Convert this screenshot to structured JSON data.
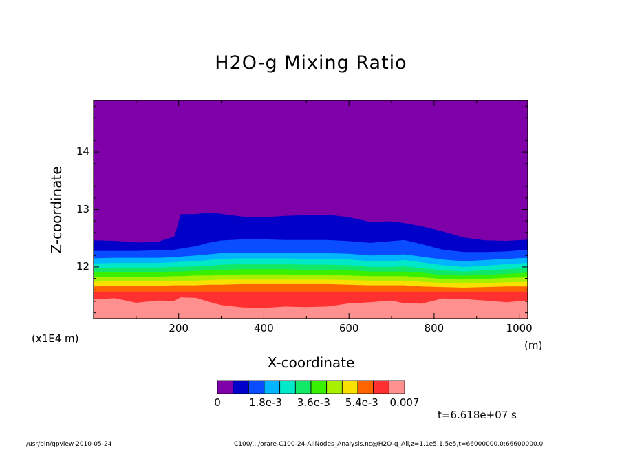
{
  "chart_data": {
    "type": "heatmap",
    "title": "H2O-g Mixing Ratio",
    "xlabel": "X-coordinate",
    "ylabel": "Z-coordinate",
    "x_unit": "(m)",
    "y_unit": "(x1E4 m)",
    "xlim": [
      0,
      1020
    ],
    "ylim": [
      11.1,
      14.9
    ],
    "x_ticks": [
      200,
      400,
      600,
      800,
      1000
    ],
    "x_tick_labels": [
      "200",
      "400",
      "600",
      "800",
      "1000"
    ],
    "y_ticks": [
      12,
      13,
      14
    ],
    "y_tick_labels": [
      "12",
      "13",
      "14"
    ],
    "colorbar": {
      "levels": [
        0,
        0.0007,
        0.0012,
        0.0018,
        0.0024,
        0.003,
        0.0036,
        0.0042,
        0.0048,
        0.0054,
        0.006,
        0.0066,
        0.007
      ],
      "colors": [
        "#7f00a8",
        "#0000c8",
        "#0a4cff",
        "#00b4ff",
        "#00e8c8",
        "#12e868",
        "#38f000",
        "#a8f000",
        "#f8e000",
        "#ff6400",
        "#ff3030",
        "#ff9090"
      ],
      "tick_labels": [
        "0",
        "1.8e-3",
        "3.6e-3",
        "5.4e-3",
        "0.007"
      ]
    },
    "profile_x": [
      0,
      50,
      100,
      150,
      190,
      205,
      240,
      270,
      300,
      350,
      400,
      450,
      500,
      550,
      600,
      650,
      700,
      730,
      770,
      820,
      870,
      920,
      970,
      1020
    ],
    "boundaries": [
      {
        "upper_level": 0.0007,
        "z": [
          12.45,
          12.45,
          12.43,
          12.45,
          12.52,
          12.92,
          12.93,
          12.93,
          12.92,
          12.88,
          12.88,
          12.88,
          12.9,
          12.92,
          12.85,
          12.78,
          12.8,
          12.78,
          12.7,
          12.62,
          12.52,
          12.45,
          12.45,
          12.48
        ]
      },
      {
        "upper_level": 0.0012,
        "z": [
          12.28,
          12.28,
          12.28,
          12.29,
          12.3,
          12.32,
          12.36,
          12.42,
          12.46,
          12.48,
          12.48,
          12.47,
          12.47,
          12.47,
          12.45,
          12.42,
          12.45,
          12.47,
          12.4,
          12.3,
          12.26,
          12.26,
          12.27,
          12.3
        ]
      },
      {
        "upper_level": 0.0018,
        "z": [
          12.15,
          12.16,
          12.16,
          12.16,
          12.17,
          12.18,
          12.2,
          12.22,
          12.24,
          12.25,
          12.25,
          12.25,
          12.24,
          12.24,
          12.23,
          12.2,
          12.21,
          12.22,
          12.18,
          12.13,
          12.1,
          12.12,
          12.14,
          12.16
        ]
      },
      {
        "upper_level": 0.0024,
        "z": [
          12.06,
          12.07,
          12.07,
          12.07,
          12.08,
          12.09,
          12.1,
          12.12,
          12.14,
          12.15,
          12.15,
          12.15,
          12.14,
          12.14,
          12.13,
          12.1,
          12.1,
          12.12,
          12.08,
          12.03,
          12.0,
          12.02,
          12.05,
          12.07
        ]
      },
      {
        "upper_level": 0.003,
        "z": [
          11.98,
          11.99,
          11.99,
          11.99,
          12.0,
          12.0,
          12.01,
          12.02,
          12.04,
          12.05,
          12.05,
          12.05,
          12.04,
          12.04,
          12.03,
          12.0,
          12.0,
          12.01,
          11.98,
          11.94,
          11.92,
          11.94,
          11.96,
          11.98
        ]
      },
      {
        "upper_level": 0.0036,
        "z": [
          11.9,
          11.91,
          11.91,
          11.91,
          11.92,
          11.92,
          11.93,
          11.94,
          11.95,
          11.96,
          11.96,
          11.96,
          11.95,
          11.95,
          11.94,
          11.92,
          11.92,
          11.92,
          11.9,
          11.86,
          11.85,
          11.86,
          11.88,
          11.9
        ]
      },
      {
        "upper_level": 0.0042,
        "z": [
          11.82,
          11.83,
          11.83,
          11.83,
          11.84,
          11.84,
          11.85,
          11.85,
          11.86,
          11.87,
          11.87,
          11.87,
          11.86,
          11.86,
          11.85,
          11.84,
          11.84,
          11.84,
          11.82,
          11.79,
          11.78,
          11.79,
          11.81,
          11.82
        ]
      },
      {
        "upper_level": 0.0048,
        "z": [
          11.74,
          11.75,
          11.75,
          11.75,
          11.76,
          11.76,
          11.76,
          11.77,
          11.78,
          11.78,
          11.78,
          11.78,
          11.78,
          11.78,
          11.77,
          11.76,
          11.76,
          11.76,
          11.74,
          11.72,
          11.71,
          11.72,
          11.73,
          11.74
        ]
      },
      {
        "upper_level": 0.0054,
        "z": [
          11.66,
          11.67,
          11.67,
          11.67,
          11.68,
          11.68,
          11.68,
          11.69,
          11.69,
          11.7,
          11.7,
          11.7,
          11.7,
          11.7,
          11.69,
          11.68,
          11.68,
          11.68,
          11.66,
          11.65,
          11.64,
          11.65,
          11.66,
          11.66
        ]
      },
      {
        "upper_level": 0.006,
        "z": [
          11.57,
          11.57,
          11.57,
          11.57,
          11.57,
          11.57,
          11.57,
          11.57,
          11.57,
          11.57,
          11.57,
          11.57,
          11.57,
          11.57,
          11.57,
          11.57,
          11.57,
          11.57,
          11.57,
          11.57,
          11.57,
          11.57,
          11.57,
          11.57
        ]
      },
      {
        "upper_level": 0.0066,
        "z": [
          11.42,
          11.45,
          11.38,
          11.43,
          11.4,
          11.47,
          11.47,
          11.38,
          11.33,
          11.3,
          11.3,
          11.3,
          11.3,
          11.32,
          11.35,
          11.38,
          11.42,
          11.38,
          11.35,
          11.45,
          11.45,
          11.4,
          11.38,
          11.42
        ]
      }
    ],
    "time_label": "t=6.618e+07 s"
  },
  "footer": {
    "left": "/usr/bin/gpview   2010-05-24",
    "right": "C100/.../orare-C100-24-AllNodes_Analysis.nc@H2O-g_All,z=1.1e5:1.5e5,t=66000000.0:66600000.0"
  }
}
